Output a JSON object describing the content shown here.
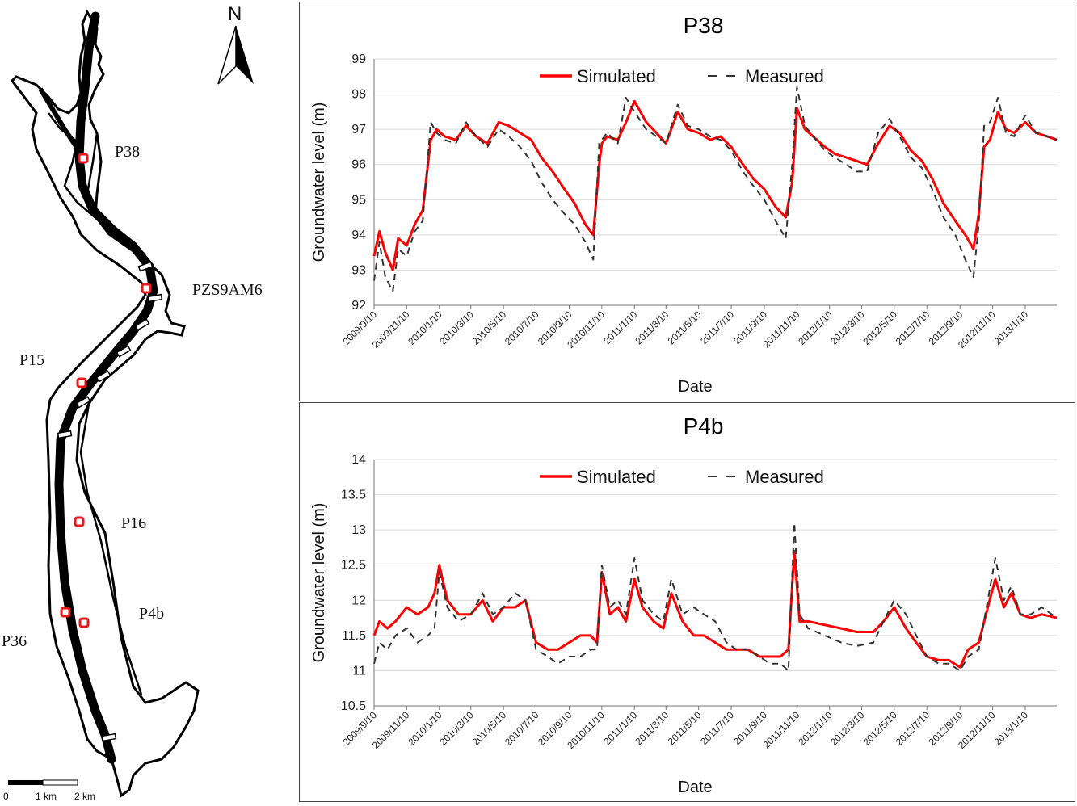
{
  "map": {
    "north_label": "N",
    "wells": [
      {
        "name": "P38"
      },
      {
        "name": "PZS9AM6"
      },
      {
        "name": "P15"
      },
      {
        "name": "P16"
      },
      {
        "name": "P4b"
      },
      {
        "name": "P36"
      }
    ],
    "scale": {
      "zero": "0",
      "mid": "1 km",
      "end": "2 km"
    },
    "colors": {
      "river": "#000000",
      "well_marker": "#e8191b"
    }
  },
  "chart_data": [
    {
      "type": "line",
      "title": "P38",
      "xlabel": "Date",
      "ylabel": "Groundwater level (m)",
      "ylim": [
        92,
        99
      ],
      "yticks": [
        "92",
        "93",
        "94",
        "95",
        "96",
        "97",
        "98",
        "99"
      ],
      "xticks": [
        "2009/9/10",
        "2009/11/10",
        "2010/1/10",
        "2010/3/10",
        "2010/5/10",
        "2010/7/10",
        "2010/9/10",
        "2010/11/10",
        "2011/1/10",
        "2011/3/10",
        "2011/5/10",
        "2011/7/10",
        "2011/9/10",
        "2011/11/10",
        "2012/1/10",
        "2012/3/10",
        "2012/5/10",
        "2012/7/10",
        "2012/9/10",
        "2012/11/10",
        "2013/1/10"
      ],
      "xrange": [
        "2009/9/10",
        "2013/3/10"
      ],
      "grid": "horizontal",
      "legend_position": "top-center",
      "series": [
        {
          "name": "Simulated",
          "color": "#ff0000",
          "style": "solid",
          "x": [
            "2009/9/10",
            "2009/9/20",
            "2009/10/1",
            "2009/10/15",
            "2009/10/25",
            "2009/11/10",
            "2009/11/25",
            "2009/12/10",
            "2009/12/25",
            "2010/1/5",
            "2010/1/20",
            "2010/2/10",
            "2010/3/1",
            "2010/3/20",
            "2010/4/10",
            "2010/5/1",
            "2010/5/20",
            "2010/6/10",
            "2010/7/1",
            "2010/7/20",
            "2010/8/10",
            "2010/9/1",
            "2010/9/20",
            "2010/10/10",
            "2010/10/25",
            "2010/11/5",
            "2010/11/10",
            "2010/11/20",
            "2010/12/10",
            "2010/12/25",
            "2011/1/10",
            "2011/2/1",
            "2011/2/20",
            "2011/3/10",
            "2011/4/1",
            "2011/4/20",
            "2011/5/10",
            "2011/6/1",
            "2011/6/20",
            "2011/7/10",
            "2011/8/1",
            "2011/8/20",
            "2011/9/10",
            "2011/10/1",
            "2011/10/20",
            "2011/11/1",
            "2011/11/10",
            "2011/11/25",
            "2011/12/10",
            "2012/1/1",
            "2012/1/20",
            "2012/2/10",
            "2012/3/1",
            "2012/3/20",
            "2012/4/10",
            "2012/5/1",
            "2012/5/20",
            "2012/6/10",
            "2012/7/1",
            "2012/7/20",
            "2012/8/10",
            "2012/9/1",
            "2012/9/20",
            "2012/10/5",
            "2012/10/15",
            "2012/10/25",
            "2012/11/5",
            "2012/11/20",
            "2012/12/5",
            "2012/12/20",
            "2013/1/10",
            "2013/1/30",
            "2013/2/20",
            "2013/3/10"
          ],
          "y": [
            93.4,
            94.1,
            93.5,
            93.0,
            93.9,
            93.7,
            94.3,
            94.7,
            96.7,
            97.0,
            96.8,
            96.7,
            97.1,
            96.8,
            96.6,
            97.2,
            97.1,
            96.9,
            96.7,
            96.2,
            95.8,
            95.3,
            94.9,
            94.3,
            94.0,
            96.0,
            96.6,
            96.8,
            96.7,
            97.2,
            97.8,
            97.2,
            96.9,
            96.6,
            97.5,
            97.0,
            96.9,
            96.7,
            96.8,
            96.5,
            96.0,
            95.6,
            95.3,
            94.8,
            94.5,
            95.5,
            97.6,
            97.0,
            96.8,
            96.5,
            96.3,
            96.2,
            96.1,
            96.0,
            96.6,
            97.1,
            96.9,
            96.4,
            96.1,
            95.6,
            94.9,
            94.4,
            94.0,
            93.6,
            94.6,
            96.5,
            96.7,
            97.5,
            97.0,
            96.9,
            97.2,
            96.9,
            96.8,
            96.7
          ]
        },
        {
          "name": "Measured",
          "color": "#333333",
          "style": "dashed",
          "x": [
            "2009/9/10",
            "2009/9/20",
            "2009/10/1",
            "2009/10/15",
            "2009/10/25",
            "2009/11/10",
            "2009/11/25",
            "2009/12/10",
            "2009/12/25",
            "2010/1/5",
            "2010/1/20",
            "2010/2/10",
            "2010/3/1",
            "2010/3/20",
            "2010/4/10",
            "2010/5/1",
            "2010/5/20",
            "2010/6/10",
            "2010/7/1",
            "2010/7/20",
            "2010/8/10",
            "2010/9/1",
            "2010/9/20",
            "2010/10/10",
            "2010/10/25",
            "2010/11/5",
            "2010/11/10",
            "2010/11/20",
            "2010/12/10",
            "2010/12/25",
            "2011/1/10",
            "2011/2/1",
            "2011/2/20",
            "2011/3/10",
            "2011/4/1",
            "2011/4/20",
            "2011/5/10",
            "2011/6/1",
            "2011/6/20",
            "2011/7/10",
            "2011/8/1",
            "2011/8/20",
            "2011/9/10",
            "2011/10/1",
            "2011/10/20",
            "2011/11/1",
            "2011/11/10",
            "2011/11/25",
            "2011/12/10",
            "2012/1/1",
            "2012/1/20",
            "2012/2/10",
            "2012/3/1",
            "2012/3/20",
            "2012/4/10",
            "2012/5/1",
            "2012/5/20",
            "2012/6/10",
            "2012/7/1",
            "2012/7/20",
            "2012/8/10",
            "2012/9/1",
            "2012/9/20",
            "2012/10/5",
            "2012/10/15",
            "2012/10/25",
            "2012/11/5",
            "2012/11/20",
            "2012/12/5",
            "2012/12/20",
            "2013/1/10",
            "2013/1/30",
            "2013/2/20",
            "2013/3/10"
          ],
          "y": [
            92.7,
            93.8,
            92.8,
            92.4,
            93.6,
            93.4,
            94.1,
            94.4,
            97.2,
            96.9,
            96.7,
            96.6,
            97.2,
            96.8,
            96.5,
            97.0,
            96.8,
            96.5,
            96.1,
            95.5,
            95.0,
            94.6,
            94.3,
            93.8,
            93.3,
            96.6,
            96.7,
            96.9,
            96.6,
            97.9,
            97.5,
            97.0,
            96.8,
            96.6,
            97.7,
            97.1,
            97.0,
            96.8,
            96.7,
            96.4,
            95.8,
            95.4,
            95.0,
            94.4,
            93.9,
            96.0,
            98.2,
            97.1,
            96.8,
            96.4,
            96.2,
            96.0,
            95.8,
            95.8,
            96.9,
            97.3,
            96.8,
            96.2,
            95.9,
            95.3,
            94.5,
            94.0,
            93.3,
            92.8,
            94.3,
            97.1,
            97.2,
            97.9,
            96.9,
            96.8,
            97.4,
            96.9,
            96.8,
            96.7
          ]
        }
      ]
    },
    {
      "type": "line",
      "title": "P4b",
      "xlabel": "Date",
      "ylabel": "Groundwater level (m)",
      "ylim": [
        10.5,
        14
      ],
      "yticks": [
        "10.5",
        "11",
        "11.5",
        "12",
        "12.5",
        "13",
        "13.5",
        "14"
      ],
      "xticks": [
        "2009/9/10",
        "2009/11/10",
        "2010/1/10",
        "2010/3/10",
        "2010/5/10",
        "2010/7/10",
        "2010/9/10",
        "2010/11/10",
        "2011/1/10",
        "2011/3/10",
        "2011/5/10",
        "2011/7/10",
        "2011/9/10",
        "2011/11/10",
        "2012/1/10",
        "2012/3/10",
        "2012/5/10",
        "2012/7/10",
        "2012/9/10",
        "2012/11/10",
        "2013/1/10"
      ],
      "xrange": [
        "2009/9/10",
        "2013/3/10"
      ],
      "grid": "horizontal",
      "legend_position": "top-center",
      "series": [
        {
          "name": "Simulated",
          "color": "#ff0000",
          "style": "solid",
          "x": [
            "2009/9/10",
            "2009/9/20",
            "2009/10/5",
            "2009/10/20",
            "2009/11/10",
            "2009/11/30",
            "2009/12/20",
            "2010/1/1",
            "2010/1/10",
            "2010/1/25",
            "2010/2/15",
            "2010/3/10",
            "2010/4/1",
            "2010/4/20",
            "2010/5/10",
            "2010/6/1",
            "2010/6/20",
            "2010/7/10",
            "2010/8/1",
            "2010/8/20",
            "2010/9/10",
            "2010/10/1",
            "2010/10/20",
            "2010/11/1",
            "2010/11/10",
            "2010/11/25",
            "2010/12/10",
            "2010/12/25",
            "2011/1/10",
            "2011/1/25",
            "2011/2/15",
            "2011/3/5",
            "2011/3/20",
            "2011/4/10",
            "2011/5/1",
            "2011/5/20",
            "2011/6/10",
            "2011/7/1",
            "2011/7/20",
            "2011/8/10",
            "2011/9/1",
            "2011/9/20",
            "2011/10/10",
            "2011/10/25",
            "2011/11/5",
            "2011/11/15",
            "2011/12/1",
            "2012/1/1",
            "2012/2/1",
            "2012/3/1",
            "2012/4/1",
            "2012/4/20",
            "2012/5/10",
            "2012/6/1",
            "2012/6/20",
            "2012/7/10",
            "2012/8/1",
            "2012/8/20",
            "2012/9/10",
            "2012/9/25",
            "2012/10/15",
            "2012/11/1",
            "2012/11/15",
            "2012/12/1",
            "2012/12/15",
            "2013/1/1",
            "2013/1/20",
            "2013/2/10",
            "2013/3/10"
          ],
          "y": [
            11.5,
            11.7,
            11.6,
            11.7,
            11.9,
            11.8,
            11.9,
            12.1,
            12.5,
            12.0,
            11.8,
            11.8,
            12.0,
            11.7,
            11.9,
            11.9,
            12.0,
            11.4,
            11.3,
            11.3,
            11.4,
            11.5,
            11.5,
            11.4,
            12.4,
            11.8,
            11.9,
            11.7,
            12.3,
            11.9,
            11.7,
            11.6,
            12.1,
            11.7,
            11.5,
            11.5,
            11.4,
            11.3,
            11.3,
            11.3,
            11.2,
            11.2,
            11.2,
            11.3,
            12.7,
            11.7,
            11.7,
            11.65,
            11.6,
            11.55,
            11.55,
            11.7,
            11.9,
            11.6,
            11.4,
            11.2,
            11.15,
            11.15,
            11.05,
            11.3,
            11.4,
            11.9,
            12.3,
            11.9,
            12.1,
            11.8,
            11.75,
            11.8,
            11.75
          ]
        },
        {
          "name": "Measured",
          "color": "#333333",
          "style": "dashed",
          "x": [
            "2009/9/10",
            "2009/9/20",
            "2009/10/5",
            "2009/10/20",
            "2009/11/10",
            "2009/11/30",
            "2009/12/20",
            "2010/1/1",
            "2010/1/10",
            "2010/1/25",
            "2010/2/15",
            "2010/3/10",
            "2010/4/1",
            "2010/4/20",
            "2010/5/10",
            "2010/6/1",
            "2010/6/20",
            "2010/7/10",
            "2010/8/1",
            "2010/8/20",
            "2010/9/10",
            "2010/10/1",
            "2010/10/20",
            "2010/11/1",
            "2010/11/10",
            "2010/11/25",
            "2010/12/10",
            "2010/12/25",
            "2011/1/10",
            "2011/1/25",
            "2011/2/15",
            "2011/3/5",
            "2011/3/20",
            "2011/4/10",
            "2011/5/1",
            "2011/5/20",
            "2011/6/10",
            "2011/7/1",
            "2011/7/20",
            "2011/8/10",
            "2011/9/1",
            "2011/9/20",
            "2011/10/10",
            "2011/10/25",
            "2011/11/5",
            "2011/11/15",
            "2011/12/1",
            "2012/1/1",
            "2012/2/1",
            "2012/3/1",
            "2012/4/1",
            "2012/4/20",
            "2012/5/10",
            "2012/6/1",
            "2012/6/20",
            "2012/7/10",
            "2012/8/1",
            "2012/8/20",
            "2012/9/10",
            "2012/9/25",
            "2012/10/15",
            "2012/11/1",
            "2012/11/15",
            "2012/12/1",
            "2012/12/15",
            "2013/1/1",
            "2013/1/20",
            "2013/2/10",
            "2013/3/10"
          ],
          "y": [
            11.1,
            11.4,
            11.3,
            11.5,
            11.6,
            11.4,
            11.5,
            11.6,
            12.4,
            11.9,
            11.7,
            11.8,
            12.1,
            11.8,
            11.9,
            12.1,
            12.0,
            11.3,
            11.2,
            11.1,
            11.2,
            11.2,
            11.3,
            11.3,
            12.5,
            11.9,
            12.0,
            11.8,
            12.6,
            12.0,
            11.8,
            11.7,
            12.3,
            11.8,
            11.9,
            11.8,
            11.7,
            11.4,
            11.3,
            11.3,
            11.2,
            11.1,
            11.1,
            11.0,
            13.1,
            11.8,
            11.6,
            11.5,
            11.4,
            11.35,
            11.4,
            11.7,
            12.0,
            11.8,
            11.5,
            11.2,
            11.1,
            11.1,
            11.0,
            11.2,
            11.3,
            12.0,
            12.6,
            12.0,
            12.2,
            11.8,
            11.8,
            11.9,
            11.75
          ]
        }
      ]
    }
  ]
}
